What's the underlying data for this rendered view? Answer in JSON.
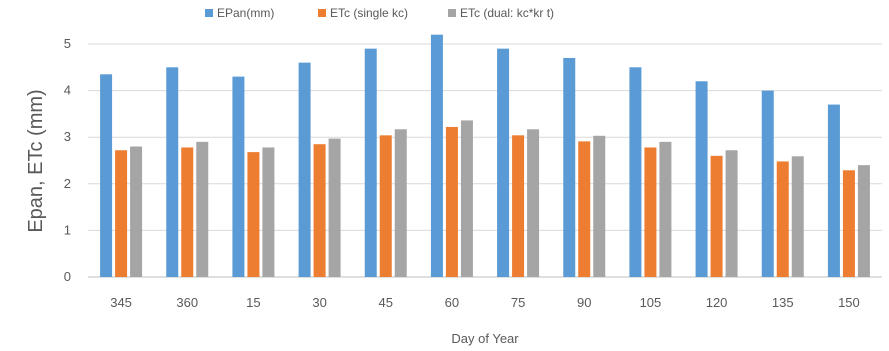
{
  "chart_data": {
    "type": "bar",
    "xlabel": "Day of Year",
    "ylabel": "Epan, ETc (mm)",
    "ylim": [
      0,
      5
    ],
    "yticks": [
      0,
      1,
      2,
      3,
      4,
      5
    ],
    "grid": true,
    "legend_position": "top",
    "categories": [
      "345",
      "360",
      "15",
      "30",
      "45",
      "60",
      "75",
      "90",
      "105",
      "120",
      "135",
      "150"
    ],
    "series": [
      {
        "name": "EPan(mm)",
        "color": "#5B9BD5",
        "values": [
          4.35,
          4.5,
          4.3,
          4.6,
          4.9,
          5.2,
          4.9,
          4.7,
          4.5,
          4.2,
          4.0,
          3.7
        ]
      },
      {
        "name": "ETc (single kc)",
        "color": "#ED7D31",
        "values": [
          2.72,
          2.78,
          2.68,
          2.85,
          3.04,
          3.22,
          3.04,
          2.91,
          2.78,
          2.6,
          2.48,
          2.29
        ]
      },
      {
        "name": "ETc (dual: kc*kr t)",
        "color": "#A5A5A5",
        "values": [
          2.8,
          2.9,
          2.78,
          2.97,
          3.17,
          3.36,
          3.17,
          3.03,
          2.9,
          2.72,
          2.59,
          2.4
        ]
      }
    ]
  }
}
